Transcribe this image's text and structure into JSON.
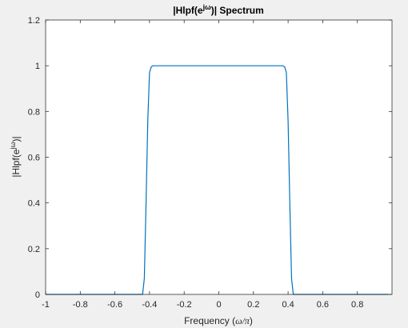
{
  "chart_data": {
    "type": "line",
    "title": {
      "prefix": "|Hlpf(e",
      "superscript": "jω",
      "suffix": ")| Spectrum"
    },
    "xlabel": {
      "prefix": "Frequency (",
      "math": "ω/π",
      "suffix": ")"
    },
    "ylabel": {
      "prefix": "|Hlpf(e",
      "superscript": "jω",
      "suffix": ")|"
    },
    "xlim": [
      -1,
      1
    ],
    "ylim": [
      0,
      1.2
    ],
    "xticks": [
      -1,
      -0.8,
      -0.6,
      -0.4,
      -0.2,
      0,
      0.2,
      0.4,
      0.6,
      0.8
    ],
    "xtick_labels": [
      "-1",
      "-0.8",
      "-0.6",
      "-0.4",
      "-0.2",
      "0",
      "0.2",
      "0.4",
      "0.6",
      "0.8"
    ],
    "yticks": [
      0,
      0.2,
      0.4,
      0.6,
      0.8,
      1,
      1.2
    ],
    "ytick_labels": [
      "0",
      "0.2",
      "0.4",
      "0.6",
      "0.8",
      "1",
      "1.2"
    ],
    "grid": false,
    "line_color": "#0072bd",
    "series": [
      {
        "x": [
          -1,
          -0.6,
          -0.44,
          -0.43,
          -0.42,
          -0.41,
          -0.4,
          -0.39,
          -0.38,
          -0.37,
          -0.36,
          -0.3,
          -0.2,
          -0.1,
          0,
          0.1,
          0.2,
          0.3,
          0.36,
          0.37,
          0.38,
          0.39,
          0.4,
          0.41,
          0.42,
          0.43,
          0.44,
          0.6,
          0.98
        ],
        "y": [
          0,
          0,
          0,
          0.07,
          0.4,
          0.76,
          0.97,
          0.995,
          1,
          1,
          1,
          1,
          1,
          1,
          1,
          1,
          1,
          1,
          1,
          1,
          0.995,
          0.97,
          0.76,
          0.4,
          0.07,
          0,
          0,
          0,
          0
        ]
      }
    ]
  }
}
